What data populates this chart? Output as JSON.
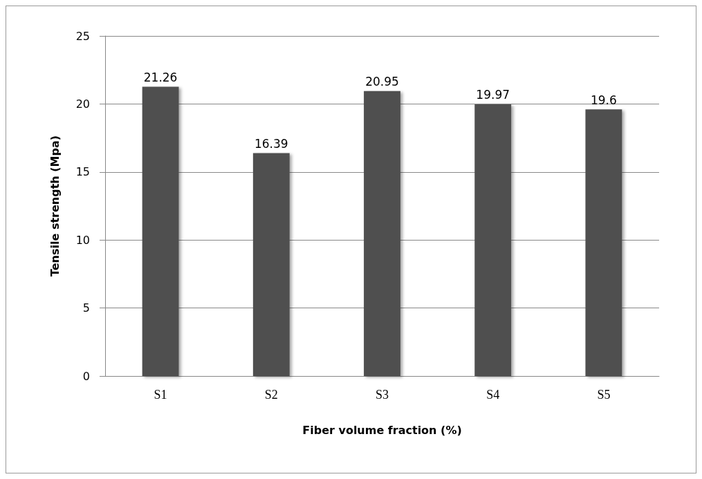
{
  "chart_data": {
    "type": "bar",
    "xlabel": "Fiber volume fraction (%)",
    "ylabel": "Tensile strength (Mpa)",
    "categories": [
      "S1",
      "S2",
      "S3",
      "S4",
      "S5"
    ],
    "values": [
      21.26,
      16.39,
      20.95,
      19.97,
      19.6
    ],
    "color": "#505050",
    "ylim": [
      0,
      25
    ],
    "yticks": [
      0,
      5,
      10,
      15,
      20,
      25
    ],
    "grid": "y",
    "data_labels": true
  }
}
